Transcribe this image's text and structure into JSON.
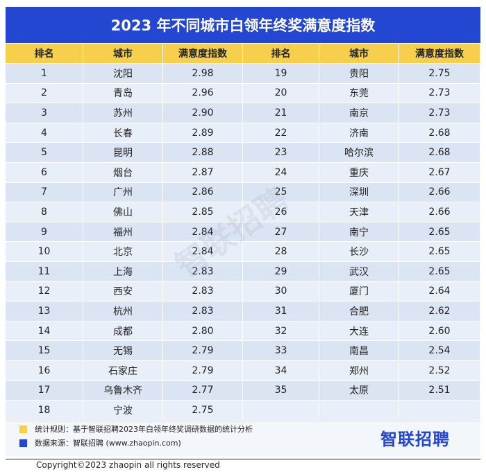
{
  "header": {
    "title": "2023 年不同城市白领年终奖满意度指数"
  },
  "table": {
    "headers": [
      "排名",
      "城市",
      "满意度指数",
      "排名",
      "城市",
      "满意度指数"
    ],
    "left_rows": [
      [
        1,
        "沈阳",
        "2.98"
      ],
      [
        2,
        "青岛",
        "2.96"
      ],
      [
        3,
        "苏州",
        "2.90"
      ],
      [
        4,
        "长春",
        "2.89"
      ],
      [
        5,
        "昆明",
        "2.88"
      ],
      [
        6,
        "烟台",
        "2.87"
      ],
      [
        7,
        "广州",
        "2.86"
      ],
      [
        8,
        "佛山",
        "2.85"
      ],
      [
        9,
        "福州",
        "2.84"
      ],
      [
        10,
        "北京",
        "2.84"
      ],
      [
        11,
        "上海",
        "2.83"
      ],
      [
        12,
        "西安",
        "2.83"
      ],
      [
        13,
        "杭州",
        "2.83"
      ],
      [
        14,
        "成都",
        "2.80"
      ],
      [
        15,
        "无锡",
        "2.79"
      ],
      [
        16,
        "石家庄",
        "2.79"
      ],
      [
        17,
        "乌鲁木齐",
        "2.77"
      ],
      [
        18,
        "宁波",
        "2.75"
      ]
    ],
    "right_rows": [
      [
        19,
        "贵阳",
        "2.75"
      ],
      [
        20,
        "东莞",
        "2.73"
      ],
      [
        21,
        "南京",
        "2.73"
      ],
      [
        22,
        "济南",
        "2.68"
      ],
      [
        23,
        "哈尔滨",
        "2.68"
      ],
      [
        24,
        "重庆",
        "2.67"
      ],
      [
        25,
        "深圳",
        "2.66"
      ],
      [
        26,
        "天津",
        "2.66"
      ],
      [
        27,
        "南宁",
        "2.65"
      ],
      [
        28,
        "长沙",
        "2.65"
      ],
      [
        29,
        "武汉",
        "2.65"
      ],
      [
        30,
        "厦门",
        "2.64"
      ],
      [
        31,
        "合肥",
        "2.62"
      ],
      [
        32,
        "大连",
        "2.60"
      ],
      [
        33,
        "南昌",
        "2.54"
      ],
      [
        34,
        "郑州",
        "2.52"
      ],
      [
        35,
        "太原",
        "2.51"
      ]
    ]
  },
  "watermark": "智联招聘",
  "footer": {
    "rule": "统计规则：基于智联招聘2023年白领年终奖调研数据的统计分析",
    "source": "数据来源：智联招聘 (www.zhaopin.com)",
    "logo": "智联招聘",
    "copyright": "Copyright©2023 zhaopin all rights reserved"
  }
}
